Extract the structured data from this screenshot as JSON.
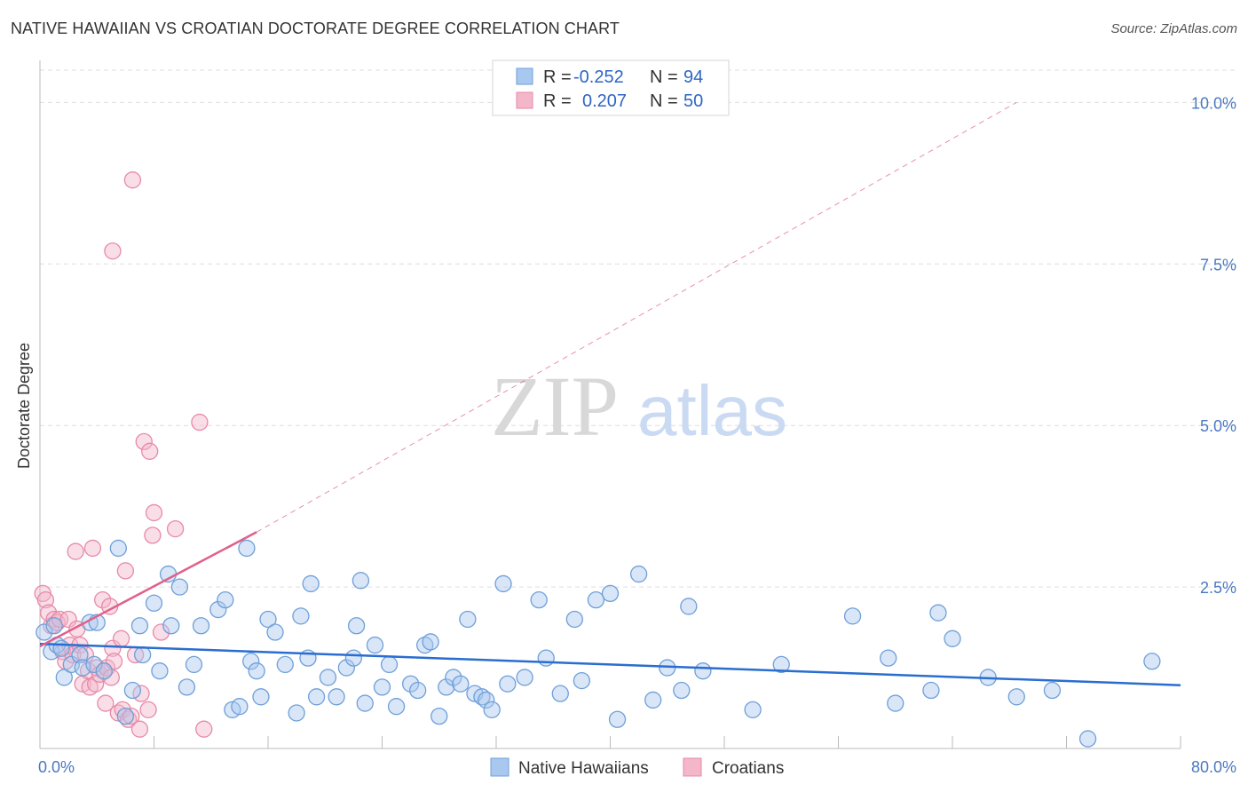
{
  "title": "NATIVE HAWAIIAN VS CROATIAN DOCTORATE DEGREE CORRELATION CHART",
  "source": "Source: ZipAtlas.com",
  "watermark": {
    "zip": "ZIP",
    "atlas": "atlas"
  },
  "colors": {
    "blue_fill": "#a8c8f0",
    "blue_stroke": "#6f9fd8",
    "blue_line": "#2a6dd0",
    "pink_fill": "#f4b6c9",
    "pink_stroke": "#e68aa8",
    "pink_line": "#e0608a",
    "grid": "#dddddd",
    "tick_text": "#4a78c0"
  },
  "legend": {
    "rows": [
      {
        "r_label": "R =",
        "r_value": "-0.252",
        "n_label": "N =",
        "n_value": "94",
        "series": "blue"
      },
      {
        "r_label": "R =",
        "r_value": "0.207",
        "n_label": "N =",
        "n_value": "50",
        "series": "pink"
      }
    ]
  },
  "chart_data": {
    "type": "scatter",
    "title": "NATIVE HAWAIIAN VS CROATIAN DOCTORATE DEGREE CORRELATION CHART",
    "xlabel": "",
    "ylabel": "Doctorate Degree",
    "xlim": [
      0,
      80
    ],
    "ylim": [
      0,
      10.5
    ],
    "x_tick_labels": [
      {
        "value": 0,
        "label": "0.0%"
      },
      {
        "value": 80,
        "label": "80.0%"
      }
    ],
    "y_tick_labels": [
      {
        "value": 2.5,
        "label": "2.5%"
      },
      {
        "value": 5.0,
        "label": "5.0%"
      },
      {
        "value": 7.5,
        "label": "7.5%"
      },
      {
        "value": 10.0,
        "label": "10.0%"
      }
    ],
    "x_minor_ticks": [
      8,
      16,
      24,
      32,
      40,
      48,
      56,
      64,
      72,
      80
    ],
    "grid": true,
    "legend_position": "bottom-center",
    "series": [
      {
        "name": "Native Hawaiians",
        "color": "blue",
        "R": -0.252,
        "N": 94,
        "trend": {
          "x": [
            0,
            80
          ],
          "y": [
            1.62,
            0.98
          ]
        },
        "points": [
          [
            0.3,
            1.8
          ],
          [
            0.8,
            1.5
          ],
          [
            1.0,
            1.9
          ],
          [
            1.2,
            1.6
          ],
          [
            1.5,
            1.55
          ],
          [
            1.7,
            1.1
          ],
          [
            2.2,
            1.3
          ],
          [
            2.8,
            1.45
          ],
          [
            3.0,
            1.25
          ],
          [
            3.5,
            1.95
          ],
          [
            3.8,
            1.3
          ],
          [
            4.0,
            1.95
          ],
          [
            4.5,
            1.2
          ],
          [
            5.5,
            3.1
          ],
          [
            6.0,
            0.5
          ],
          [
            6.5,
            0.9
          ],
          [
            7.0,
            1.9
          ],
          [
            7.2,
            1.45
          ],
          [
            8.0,
            2.25
          ],
          [
            8.4,
            1.2
          ],
          [
            9.0,
            2.7
          ],
          [
            9.2,
            1.9
          ],
          [
            9.8,
            2.5
          ],
          [
            10.3,
            0.95
          ],
          [
            10.8,
            1.3
          ],
          [
            11.3,
            1.9
          ],
          [
            12.5,
            2.15
          ],
          [
            13.0,
            2.3
          ],
          [
            13.5,
            0.6
          ],
          [
            14.0,
            0.65
          ],
          [
            14.5,
            3.1
          ],
          [
            14.8,
            1.35
          ],
          [
            15.2,
            1.2
          ],
          [
            15.5,
            0.8
          ],
          [
            16.0,
            2.0
          ],
          [
            16.5,
            1.8
          ],
          [
            17.2,
            1.3
          ],
          [
            18.0,
            0.55
          ],
          [
            18.3,
            2.05
          ],
          [
            18.8,
            1.4
          ],
          [
            19.0,
            2.55
          ],
          [
            19.4,
            0.8
          ],
          [
            20.2,
            1.1
          ],
          [
            20.8,
            0.8
          ],
          [
            21.5,
            1.25
          ],
          [
            22.0,
            1.4
          ],
          [
            22.2,
            1.9
          ],
          [
            22.5,
            2.6
          ],
          [
            22.8,
            0.7
          ],
          [
            23.5,
            1.6
          ],
          [
            24.0,
            0.95
          ],
          [
            24.5,
            1.3
          ],
          [
            25.0,
            0.65
          ],
          [
            26.0,
            1.0
          ],
          [
            26.5,
            0.9
          ],
          [
            27.0,
            1.6
          ],
          [
            27.4,
            1.65
          ],
          [
            28.0,
            0.5
          ],
          [
            28.5,
            0.95
          ],
          [
            29.0,
            1.1
          ],
          [
            29.5,
            1.0
          ],
          [
            30.0,
            2.0
          ],
          [
            30.5,
            0.85
          ],
          [
            31.0,
            0.8
          ],
          [
            31.3,
            0.75
          ],
          [
            31.7,
            0.6
          ],
          [
            32.5,
            2.55
          ],
          [
            32.8,
            1.0
          ],
          [
            34.0,
            1.1
          ],
          [
            35.0,
            2.3
          ],
          [
            35.5,
            1.4
          ],
          [
            36.5,
            0.85
          ],
          [
            37.5,
            2.0
          ],
          [
            38.0,
            1.05
          ],
          [
            39.0,
            2.3
          ],
          [
            40.0,
            2.4
          ],
          [
            40.5,
            0.45
          ],
          [
            42.0,
            2.7
          ],
          [
            43.0,
            0.75
          ],
          [
            44.0,
            1.25
          ],
          [
            45.0,
            0.9
          ],
          [
            45.5,
            2.2
          ],
          [
            46.5,
            1.2
          ],
          [
            50.0,
            0.6
          ],
          [
            52.0,
            1.3
          ],
          [
            57.0,
            2.05
          ],
          [
            59.5,
            1.4
          ],
          [
            60.0,
            0.7
          ],
          [
            62.5,
            0.9
          ],
          [
            63.0,
            2.1
          ],
          [
            64.0,
            1.7
          ],
          [
            66.5,
            1.1
          ],
          [
            68.5,
            0.8
          ],
          [
            71.0,
            0.9
          ],
          [
            73.5,
            0.15
          ],
          [
            78.0,
            1.35
          ]
        ]
      },
      {
        "name": "Croatians",
        "color": "pink",
        "R": 0.207,
        "N": 50,
        "trend": {
          "x": [
            0,
            15.2
          ],
          "y": [
            1.58,
            3.35
          ]
        },
        "trend_extension": {
          "x": [
            15.2,
            68.5
          ],
          "y": [
            3.35,
            10.0
          ]
        },
        "points": [
          [
            0.2,
            2.4
          ],
          [
            0.4,
            2.3
          ],
          [
            0.6,
            2.1
          ],
          [
            0.8,
            1.9
          ],
          [
            1.0,
            2.0
          ],
          [
            1.2,
            1.95
          ],
          [
            1.4,
            2.0
          ],
          [
            1.6,
            1.5
          ],
          [
            1.8,
            1.35
          ],
          [
            2.0,
            2.0
          ],
          [
            2.1,
            1.6
          ],
          [
            2.3,
            1.45
          ],
          [
            2.5,
            3.05
          ],
          [
            2.6,
            1.85
          ],
          [
            2.8,
            1.6
          ],
          [
            3.0,
            1.0
          ],
          [
            3.2,
            1.45
          ],
          [
            3.4,
            1.2
          ],
          [
            3.5,
            0.95
          ],
          [
            3.7,
            3.1
          ],
          [
            3.9,
            1.0
          ],
          [
            4.0,
            1.25
          ],
          [
            4.2,
            1.15
          ],
          [
            4.4,
            2.3
          ],
          [
            4.5,
            1.2
          ],
          [
            4.6,
            0.7
          ],
          [
            4.7,
            1.25
          ],
          [
            4.9,
            2.2
          ],
          [
            5.0,
            1.1
          ],
          [
            5.1,
            1.55
          ],
          [
            5.2,
            1.35
          ],
          [
            5.5,
            0.55
          ],
          [
            5.7,
            1.7
          ],
          [
            5.8,
            0.6
          ],
          [
            6.0,
            2.75
          ],
          [
            6.2,
            0.45
          ],
          [
            6.4,
            0.5
          ],
          [
            6.5,
            8.8
          ],
          [
            6.7,
            1.45
          ],
          [
            7.0,
            0.3
          ],
          [
            7.1,
            0.85
          ],
          [
            7.3,
            4.75
          ],
          [
            7.6,
            0.6
          ],
          [
            7.7,
            4.6
          ],
          [
            7.9,
            3.3
          ],
          [
            8.0,
            3.65
          ],
          [
            8.5,
            1.8
          ],
          [
            9.5,
            3.4
          ],
          [
            11.2,
            5.05
          ],
          [
            11.5,
            0.3
          ]
        ]
      }
    ],
    "extra_points": [
      {
        "series": "Croatians",
        "x": 5.1,
        "y": 7.7
      }
    ]
  },
  "bottom_legend": {
    "items": [
      {
        "label": "Native Hawaiians",
        "series": "blue"
      },
      {
        "label": "Croatians",
        "series": "pink"
      }
    ]
  }
}
